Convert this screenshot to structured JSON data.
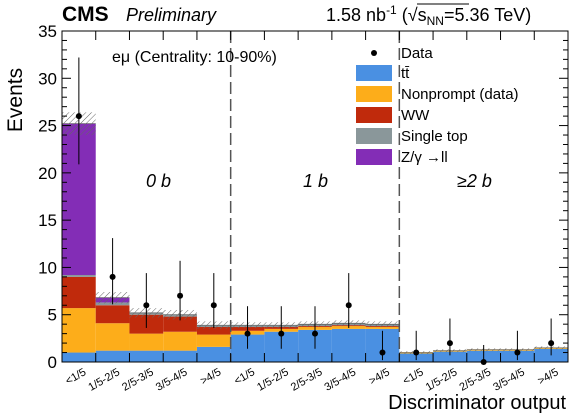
{
  "header": {
    "cms": "CMS",
    "preliminary": "Preliminary",
    "lumi": "1.58 nb",
    "lumi_exp": "-1",
    "energy_open": " (",
    "sqrt_s": "s",
    "sqrt_sub": "NN",
    "energy_value": "=5.36 TeV)"
  },
  "chart_data": {
    "type": "bar",
    "stacked": true,
    "title": "",
    "xlabel": "Discriminator output",
    "ylabel": "Events",
    "ylim": [
      0,
      35
    ],
    "yticks": [
      0,
      5,
      10,
      15,
      20,
      25,
      30,
      35
    ],
    "categories": [
      "<1/5",
      "1/5-2/5",
      "2/5-3/5",
      "3/5-4/5",
      ">4/5",
      "<1/5",
      "1/5-2/5",
      "2/5-3/5",
      "3/5-4/5",
      ">4/5",
      "<1/5",
      "1/5-2/5",
      "2/5-3/5",
      "3/5-4/5",
      ">4/5"
    ],
    "tick_labels": [
      "<1/5",
      "1/5-2/5",
      "2/5-3/5",
      "3/5-4/5",
      ">4/5"
    ],
    "channel_label": "eμ (Centrality: 10-90%)",
    "regions": [
      "0 b",
      "1 b",
      "≥2 b"
    ],
    "series": [
      {
        "name": "tt̄",
        "color": "#4a90e2",
        "values": [
          1.0,
          1.2,
          1.2,
          1.2,
          1.6,
          2.9,
          3.2,
          3.4,
          3.5,
          3.5,
          0.9,
          1.1,
          1.2,
          1.2,
          1.4
        ]
      },
      {
        "name": "Nonprompt (data)",
        "color": "#fdad1a",
        "values": [
          4.7,
          2.9,
          1.8,
          2.0,
          1.3,
          0.4,
          0.3,
          0.3,
          0.3,
          0.2,
          0.1,
          0.1,
          0.1,
          0.1,
          0.1
        ]
      },
      {
        "name": "WW",
        "color": "#c02a0c",
        "values": [
          3.3,
          1.9,
          2.0,
          1.6,
          0.8,
          0.4,
          0.2,
          0.1,
          0.1,
          0.1,
          0.0,
          0.0,
          0.0,
          0.0,
          0.0
        ]
      },
      {
        "name": "Single top",
        "color": "#8a979a",
        "values": [
          0.2,
          0.3,
          0.2,
          0.2,
          0.2,
          0.2,
          0.2,
          0.2,
          0.2,
          0.2,
          0.0,
          0.0,
          0.0,
          0.0,
          0.0
        ]
      },
      {
        "name": "Z/γ →ll",
        "color": "#832db6",
        "values": [
          16.0,
          0.5,
          0.0,
          0.0,
          0.0,
          0.0,
          0.0,
          0.0,
          0.0,
          0.0,
          0.0,
          0.0,
          0.0,
          0.0,
          0.0
        ]
      }
    ],
    "data": {
      "name": "Data",
      "values": [
        26,
        9,
        6,
        7,
        6,
        3,
        3,
        3,
        6,
        1,
        1,
        2,
        0,
        1,
        2
      ],
      "err_up": [
        6.2,
        4.1,
        3.4,
        3.7,
        3.4,
        2.9,
        2.9,
        2.9,
        3.4,
        2.3,
        2.3,
        2.6,
        1.8,
        2.3,
        2.6
      ],
      "err_down": [
        5.1,
        2.9,
        2.4,
        2.6,
        2.4,
        1.6,
        1.6,
        1.6,
        2.4,
        0.8,
        0.8,
        1.3,
        0.0,
        0.8,
        1.3
      ]
    },
    "uncertainty_band": [
      1.2,
      0.6,
      0.5,
      0.5,
      0.4,
      0.3,
      0.3,
      0.3,
      0.3,
      0.3,
      0.15,
      0.15,
      0.15,
      0.15,
      0.15
    ],
    "legend_placement": "top-right",
    "grid": false
  }
}
